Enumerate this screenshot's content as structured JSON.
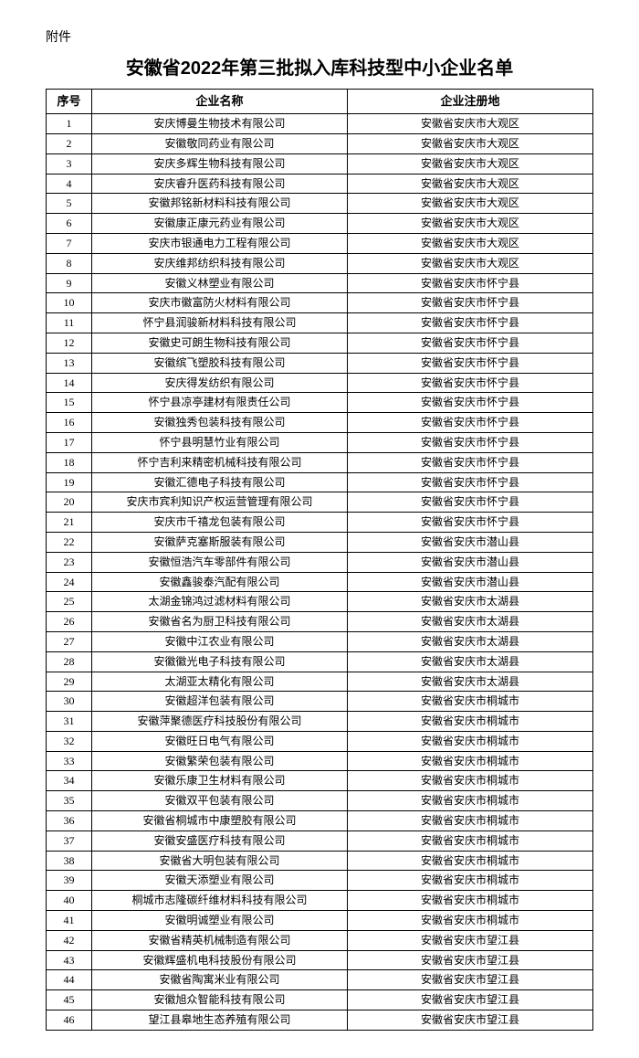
{
  "attachment_label": "附件",
  "title": "安徽省2022年第三批拟入库科技型中小企业名单",
  "table": {
    "columns": [
      "序号",
      "企业名称",
      "企业注册地"
    ],
    "rows": [
      [
        "1",
        "安庆博曼生物技术有限公司",
        "安徽省安庆市大观区"
      ],
      [
        "2",
        "安徽敬同药业有限公司",
        "安徽省安庆市大观区"
      ],
      [
        "3",
        "安庆多辉生物科技有限公司",
        "安徽省安庆市大观区"
      ],
      [
        "4",
        "安庆睿升医药科技有限公司",
        "安徽省安庆市大观区"
      ],
      [
        "5",
        "安徽邦铭新材料科技有限公司",
        "安徽省安庆市大观区"
      ],
      [
        "6",
        "安徽康正康元药业有限公司",
        "安徽省安庆市大观区"
      ],
      [
        "7",
        "安庆市银通电力工程有限公司",
        "安徽省安庆市大观区"
      ],
      [
        "8",
        "安庆维邦纺织科技有限公司",
        "安徽省安庆市大观区"
      ],
      [
        "9",
        "安徽义林塑业有限公司",
        "安徽省安庆市怀宁县"
      ],
      [
        "10",
        "安庆市徽富防火材料有限公司",
        "安徽省安庆市怀宁县"
      ],
      [
        "11",
        "怀宁县润骏新材料科技有限公司",
        "安徽省安庆市怀宁县"
      ],
      [
        "12",
        "安徽史可朗生物科技有限公司",
        "安徽省安庆市怀宁县"
      ],
      [
        "13",
        "安徽缤飞塑胶科技有限公司",
        "安徽省安庆市怀宁县"
      ],
      [
        "14",
        "安庆得发纺织有限公司",
        "安徽省安庆市怀宁县"
      ],
      [
        "15",
        "怀宁县凉亭建材有限责任公司",
        "安徽省安庆市怀宁县"
      ],
      [
        "16",
        "安徽独秀包装科技有限公司",
        "安徽省安庆市怀宁县"
      ],
      [
        "17",
        "怀宁县明慧竹业有限公司",
        "安徽省安庆市怀宁县"
      ],
      [
        "18",
        "怀宁吉利来精密机械科技有限公司",
        "安徽省安庆市怀宁县"
      ],
      [
        "19",
        "安徽汇德电子科技有限公司",
        "安徽省安庆市怀宁县"
      ],
      [
        "20",
        "安庆市宾利知识产权运营管理有限公司",
        "安徽省安庆市怀宁县"
      ],
      [
        "21",
        "安庆市千禧龙包装有限公司",
        "安徽省安庆市怀宁县"
      ],
      [
        "22",
        "安徽萨克塞斯服装有限公司",
        "安徽省安庆市潜山县"
      ],
      [
        "23",
        "安徽恒浩汽车零部件有限公司",
        "安徽省安庆市潜山县"
      ],
      [
        "24",
        "安徽鑫骏泰汽配有限公司",
        "安徽省安庆市潜山县"
      ],
      [
        "25",
        "太湖金锦鸿过滤材料有限公司",
        "安徽省安庆市太湖县"
      ],
      [
        "26",
        "安徽省名为厨卫科技有限公司",
        "安徽省安庆市太湖县"
      ],
      [
        "27",
        "安徽中江农业有限公司",
        "安徽省安庆市太湖县"
      ],
      [
        "28",
        "安徽徽光电子科技有限公司",
        "安徽省安庆市太湖县"
      ],
      [
        "29",
        "太湖亚太精化有限公司",
        "安徽省安庆市太湖县"
      ],
      [
        "30",
        "安徽超洋包装有限公司",
        "安徽省安庆市桐城市"
      ],
      [
        "31",
        "安徽萍聚德医疗科技股份有限公司",
        "安徽省安庆市桐城市"
      ],
      [
        "32",
        "安徽旺日电气有限公司",
        "安徽省安庆市桐城市"
      ],
      [
        "33",
        "安徽繁荣包装有限公司",
        "安徽省安庆市桐城市"
      ],
      [
        "34",
        "安徽乐康卫生材料有限公司",
        "安徽省安庆市桐城市"
      ],
      [
        "35",
        "安徽双平包装有限公司",
        "安徽省安庆市桐城市"
      ],
      [
        "36",
        "安徽省桐城市中康塑胶有限公司",
        "安徽省安庆市桐城市"
      ],
      [
        "37",
        "安徽安盛医疗科技有限公司",
        "安徽省安庆市桐城市"
      ],
      [
        "38",
        "安徽省大明包装有限公司",
        "安徽省安庆市桐城市"
      ],
      [
        "39",
        "安徽天添塑业有限公司",
        "安徽省安庆市桐城市"
      ],
      [
        "40",
        "桐城市志隆碳纤维材料科技有限公司",
        "安徽省安庆市桐城市"
      ],
      [
        "41",
        "安徽明诚塑业有限公司",
        "安徽省安庆市桐城市"
      ],
      [
        "42",
        "安徽省精英机械制造有限公司",
        "安徽省安庆市望江县"
      ],
      [
        "43",
        "安徽辉盛机电科技股份有限公司",
        "安徽省安庆市望江县"
      ],
      [
        "44",
        "安徽省陶寓米业有限公司",
        "安徽省安庆市望江县"
      ],
      [
        "45",
        "安徽旭众智能科技有限公司",
        "安徽省安庆市望江县"
      ],
      [
        "46",
        "望江县皋地生态养殖有限公司",
        "安徽省安庆市望江县"
      ]
    ]
  }
}
